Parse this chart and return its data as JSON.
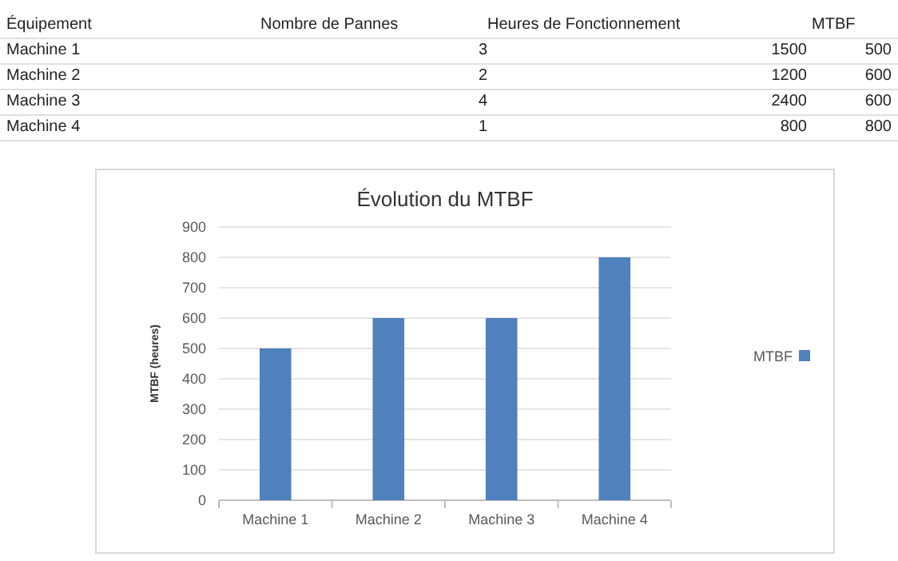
{
  "chart_data": {
    "type": "bar",
    "title": "Évolution du MTBF",
    "ylabel": "MTBF (heures)",
    "categories": [
      "Machine 1",
      "Machine 2",
      "Machine 3",
      "Machine 4"
    ],
    "series": [
      {
        "name": "MTBF",
        "color": "#4f81bd",
        "values": [
          500,
          600,
          600,
          800
        ]
      }
    ],
    "ylim": [
      0,
      900
    ],
    "yticks": [
      0,
      100,
      200,
      300,
      400,
      500,
      600,
      700,
      800,
      900
    ],
    "grid": "y",
    "legend": "right",
    "annotations": [
      "Équipement",
      "Nombre de Pannes",
      "Heures de Fonctionnement",
      "MTBF",
      "Machine 1",
      "3",
      "1500",
      "500",
      "Machine 2",
      "2",
      "1200",
      "600",
      "Machine 3",
      "4",
      "2400",
      "600",
      "Machine 4",
      "1",
      "800",
      "800"
    ]
  }
}
